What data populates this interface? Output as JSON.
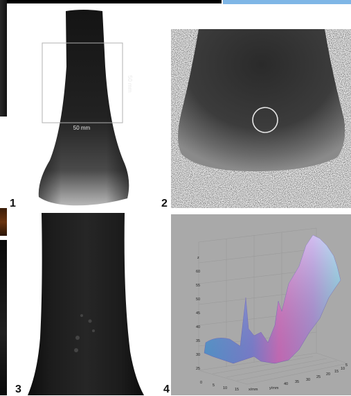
{
  "panels": [
    {
      "id": "1",
      "label": "1"
    },
    {
      "id": "2",
      "label": "2"
    },
    {
      "id": "3",
      "label": "3"
    },
    {
      "id": "4",
      "label": "4"
    }
  ],
  "panel1": {
    "width_label": "50 mm",
    "height_label": "50 mm"
  },
  "panel4": {
    "z_axis_label": "z",
    "z_ticks": [
      "60",
      "55",
      "50",
      "45",
      "40",
      "35",
      "30",
      "25"
    ],
    "x_axis_label": "x/mm",
    "y_axis_label": "y/mm",
    "x_ticks": [
      "0",
      "5",
      "10",
      "15"
    ],
    "y_ticks": [
      "40",
      "35",
      "30",
      "25",
      "20",
      "15",
      "10",
      "5"
    ]
  }
}
